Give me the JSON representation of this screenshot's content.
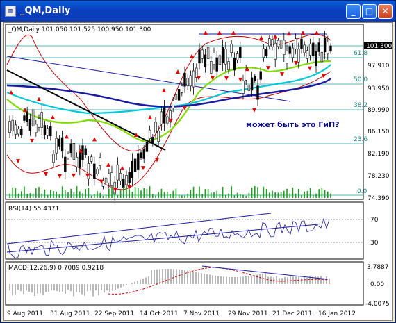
{
  "window": {
    "title": "_QM,Daily",
    "icon": "chart-window-icon"
  },
  "title_buttons": {
    "minimize": "_",
    "maximize": "□",
    "close": "✕"
  },
  "main_chart": {
    "header": "_QM,Daily  101.050 101.525 100.950 101.300",
    "current_price": "101.300",
    "price_ticks": [
      "97.910",
      "93.950",
      "89.990",
      "86.150",
      "82.190",
      "78.230",
      "74.390"
    ],
    "fib_levels": [
      "61.8",
      "50.0",
      "38.2",
      "23.6",
      "0.0"
    ],
    "annotation": "может быть это ГиП?"
  },
  "rsi_panel": {
    "header": "RSI(14) 55.4371",
    "ticks": [
      "70",
      "30"
    ]
  },
  "macd_panel": {
    "header": "MACD(12,26,9) 0.7089 0.9218",
    "ticks": [
      "3.7887",
      "0.00",
      "-4.0075"
    ]
  },
  "time_axis": [
    "9 Aug 2011",
    "31 Aug 2011",
    "22 Sep 2011",
    "14 Oct 2011",
    "7 Nov 2011",
    "29 Nov 2011",
    "21 Dec 2011",
    "16 Jan 2012"
  ],
  "colors": {
    "accent": "#0a3fbf",
    "bollinger": "#c00000",
    "ma_fast": "#7fdc00",
    "ma_mid": "#00c8d8",
    "ma_slow": "#1a1aa0"
  }
}
